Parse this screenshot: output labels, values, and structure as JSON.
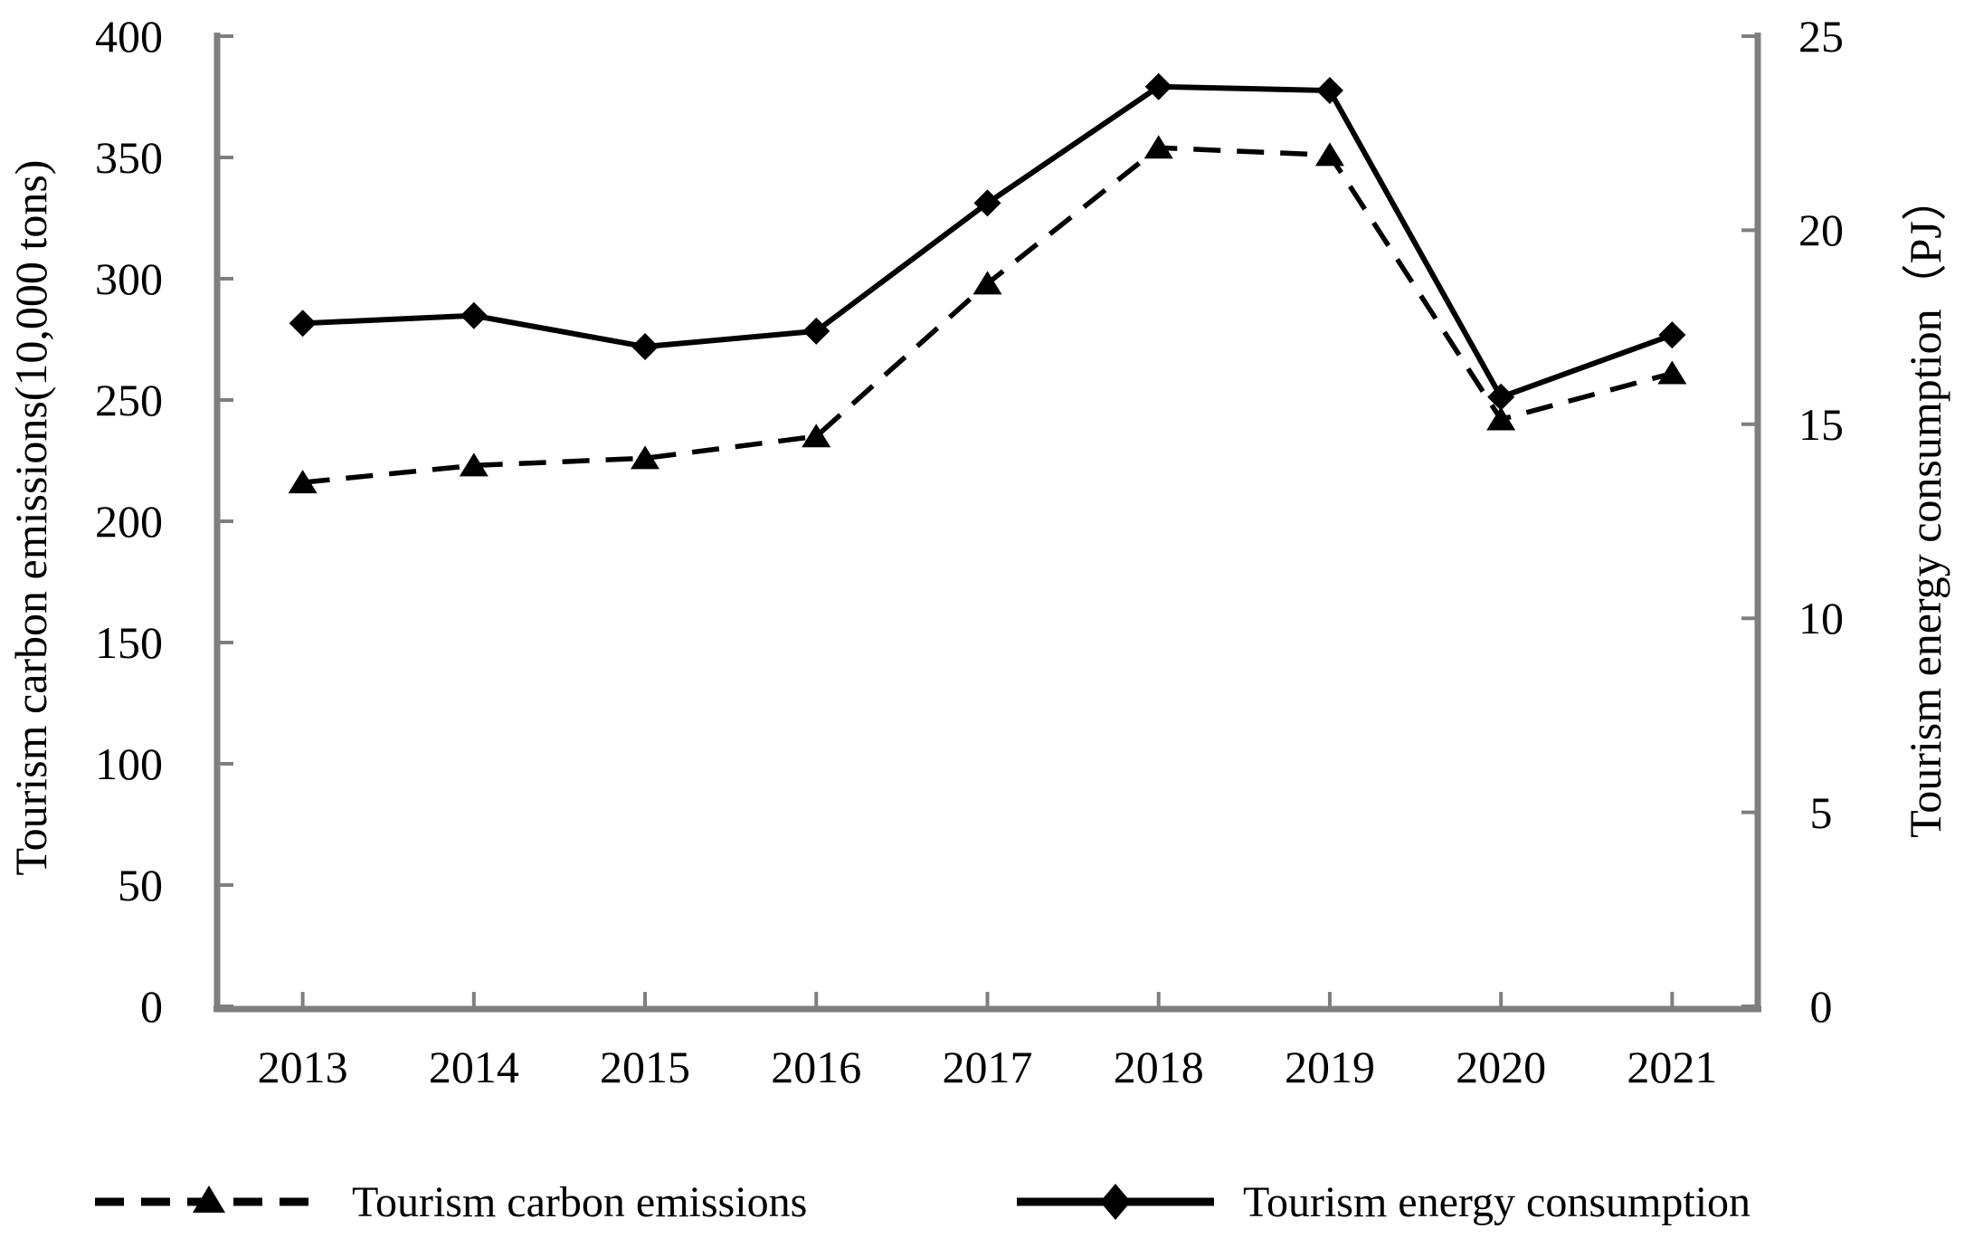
{
  "chart_data": {
    "type": "line",
    "title": "",
    "categories": [
      "2013",
      "2014",
      "2015",
      "2016",
      "2017",
      "2018",
      "2019",
      "2020",
      "2021"
    ],
    "series": [
      {
        "name": "Tourism carbon emissions",
        "axis": "left",
        "marker": "triangle",
        "line_style": "dashed",
        "values": [
          216,
          223,
          226,
          235,
          298,
          354,
          351,
          242,
          261
        ]
      },
      {
        "name": "Tourism energy consumption",
        "axis": "right",
        "marker": "diamond",
        "line_style": "solid",
        "values": [
          17.6,
          17.8,
          17.0,
          17.4,
          20.7,
          23.7,
          23.6,
          15.7,
          17.3
        ]
      }
    ],
    "axes": {
      "left": {
        "label": "Tourism carbon emissions(10,000 tons)",
        "min": 0,
        "max": 400,
        "step": 50,
        "ticks": [
          0,
          50,
          100,
          150,
          200,
          250,
          300,
          350,
          400
        ]
      },
      "right": {
        "label": "Tourism energy consumption（PJ）",
        "min": 0,
        "max": 25,
        "step": 5,
        "ticks": [
          0,
          5,
          10,
          15,
          20,
          25
        ]
      }
    },
    "legend_position": "bottom",
    "grid": false,
    "colors": {
      "axis": "#7f7f7f",
      "line": "#000000",
      "text": "#000000",
      "background": "#ffffff"
    }
  }
}
